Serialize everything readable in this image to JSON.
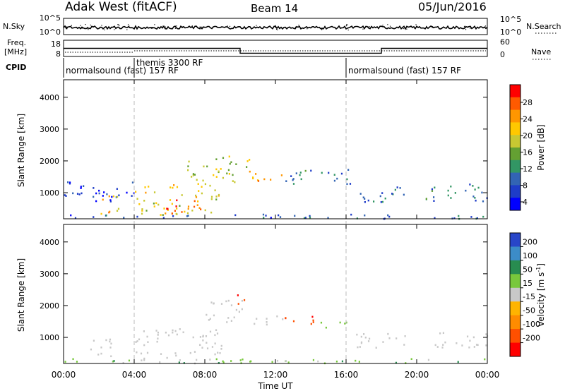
{
  "header": {
    "station": "Adak West (fitACF)",
    "beam": "Beam 14",
    "date": "05/Jun/2016"
  },
  "side_labels": {
    "nsky": "N.Sky",
    "freq_line1": "Freq.",
    "freq_line2": "[MHz]",
    "cpid": "CPID",
    "nsearch": "N.Search",
    "nave": "Nave"
  },
  "top_axes": {
    "nsky_ticks": [
      "10^5",
      "10^0"
    ],
    "nsearch_ticks": [
      "10^5",
      "10^0"
    ],
    "freq_ticks": [
      "18",
      "8"
    ],
    "nave_ticks": [
      "60",
      "0"
    ]
  },
  "cpid_segments": [
    {
      "label": "normalsound (fast) 157 RF",
      "start_hr": 0
    },
    {
      "label": "themis 3300 RF",
      "start_hr": 4
    },
    {
      "label": "normalsound (fast) 157 RF",
      "start_hr": 16
    }
  ],
  "power_colorbar": {
    "label": "Power [dB]",
    "ticks": [
      "28",
      "24",
      "20",
      "16",
      "12",
      "8",
      "4"
    ],
    "colors": [
      "#ff0000",
      "#ff5a00",
      "#ff9600",
      "#ffc800",
      "#c8c832",
      "#64a032",
      "#329664",
      "#3264b4",
      "#1e3cc8",
      "#0000ff"
    ]
  },
  "velocity_colorbar": {
    "label_main": "Velocity [m s",
    "label_sup": "-1",
    "label_end": "]",
    "ticks": [
      "200",
      "100",
      "50",
      "15",
      "-15",
      "-50",
      "-100",
      "-200"
    ],
    "colors": [
      "#2846c8",
      "#3c8cc8",
      "#288c50",
      "#78c83c",
      "#c8c8c8",
      "#ffb400",
      "#ff8c00",
      "#ff5000",
      "#ff0000"
    ]
  },
  "chart_data": {
    "type": "heatmap",
    "x_label": "Time UT",
    "x_ticks": [
      "00:00",
      "04:00",
      "08:00",
      "12:00",
      "16:00",
      "20:00",
      "00:00"
    ],
    "x_range_hr": [
      0,
      24
    ],
    "y_label": "Slant Range [km]",
    "y_ticks": [
      "4000",
      "3000",
      "2000",
      "1000"
    ],
    "y_range_km": [
      180,
      4550
    ],
    "cpid_boundaries_hr": [
      4,
      16
    ],
    "freq_step": {
      "times_hr": [
        0,
        10,
        18,
        24
      ],
      "values_mhz": [
        13,
        10,
        13
      ]
    },
    "power_regions": [
      {
        "t0": 0,
        "t1": 4,
        "r0": 700,
        "r1": 1400,
        "power_db": 6
      },
      {
        "t0": 2,
        "t1": 3.2,
        "r0": 350,
        "r1": 1000,
        "power_db": 22
      },
      {
        "t0": 4,
        "t1": 8.8,
        "r0": 300,
        "r1": 1300,
        "power_db": 20
      },
      {
        "t0": 5.5,
        "t1": 8,
        "r0": 350,
        "r1": 800,
        "power_db": 28
      },
      {
        "t0": 7,
        "t1": 10.5,
        "r0": 1300,
        "r1": 2200,
        "power_db": 18
      },
      {
        "t0": 10.5,
        "t1": 12.5,
        "r0": 1300,
        "r1": 1700,
        "power_db": 22
      },
      {
        "t0": 12.5,
        "t1": 16.2,
        "r0": 1300,
        "r1": 1800,
        "power_db": 10
      },
      {
        "t0": 16.5,
        "t1": 19.5,
        "r0": 700,
        "r1": 1200,
        "power_db": 10
      },
      {
        "t0": 20.5,
        "t1": 24,
        "r0": 700,
        "r1": 1300,
        "power_db": 10
      },
      {
        "t0": 0,
        "t1": 24,
        "r0": 200,
        "r1": 350,
        "power_db": 8
      }
    ],
    "velocity_regions": [
      {
        "t0": 1.5,
        "t1": 3.2,
        "r0": 400,
        "r1": 1000,
        "velocity": 0
      },
      {
        "t0": 4,
        "t1": 9,
        "r0": 300,
        "r1": 1300,
        "velocity": 0
      },
      {
        "t0": 8,
        "t1": 10.5,
        "r0": 1500,
        "r1": 2200,
        "velocity": 0
      },
      {
        "t0": 9.8,
        "t1": 10.4,
        "r0": 2000,
        "r1": 2400,
        "velocity": -200
      },
      {
        "t0": 10.5,
        "t1": 12.5,
        "r0": 1400,
        "r1": 1700,
        "velocity": 0
      },
      {
        "t0": 12.5,
        "t1": 14.5,
        "r0": 1400,
        "r1": 1700,
        "velocity": -200
      },
      {
        "t0": 14.5,
        "t1": 16,
        "r0": 1300,
        "r1": 1600,
        "velocity": 40
      },
      {
        "t0": 16.5,
        "t1": 19.5,
        "r0": 700,
        "r1": 1200,
        "velocity": 0
      },
      {
        "t0": 20.5,
        "t1": 24,
        "r0": 700,
        "r1": 1200,
        "velocity": 0
      },
      {
        "t0": 0,
        "t1": 24,
        "r0": 200,
        "r1": 350,
        "velocity": 30
      }
    ]
  }
}
